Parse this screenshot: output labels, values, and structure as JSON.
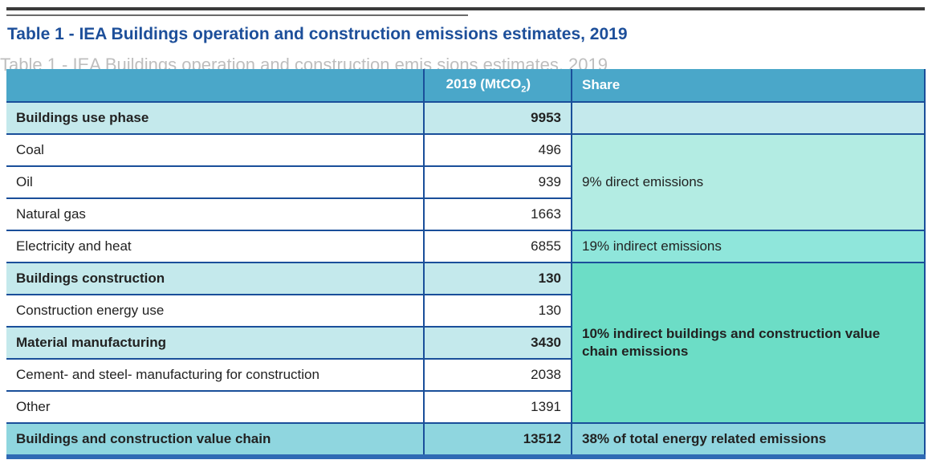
{
  "title": "Table 1 - IEA Buildings operation and construction emissions estimates, 2019",
  "ghost_text": "Table 1 - IEA Buildings operation and construction emis sions estimates, 2019",
  "header": {
    "col1": "",
    "col2_main": "2019 (MtCO",
    "col2_sub": "2",
    "col2_end": ")",
    "col3": "Share"
  },
  "rows": [
    {
      "label": "Buildings use phase",
      "value": "9953"
    },
    {
      "label": "Coal",
      "value": "496"
    },
    {
      "label": "Oil",
      "value": "939"
    },
    {
      "label": "Natural gas",
      "value": "1663"
    },
    {
      "label": "Electricity and heat",
      "value": "6855"
    },
    {
      "label": "Buildings construction",
      "value": "130"
    },
    {
      "label": "Construction energy use",
      "value": "130"
    },
    {
      "label": "Material manufacturing",
      "value": "3430"
    },
    {
      "label": "Cement- and steel- manufacturing for construction",
      "value": "2038"
    },
    {
      "label": "Other",
      "value": "1391"
    },
    {
      "label": "Buildings and construction value chain",
      "value": "13512"
    }
  ],
  "shares": {
    "direct": "9% direct emissions",
    "indirect": "19% indirect emissions",
    "value_chain": "10% indirect buildings and construction value chain emissions",
    "total": "38% of total energy related emissions"
  },
  "colors": {
    "title": "#1d4f9a",
    "header_bg": "#4aa7c9",
    "border": "#1a4f9a",
    "row_shade": "#c4e9ec",
    "share_value_chain": "#6cddc6",
    "total_bg": "#8fd6df"
  }
}
